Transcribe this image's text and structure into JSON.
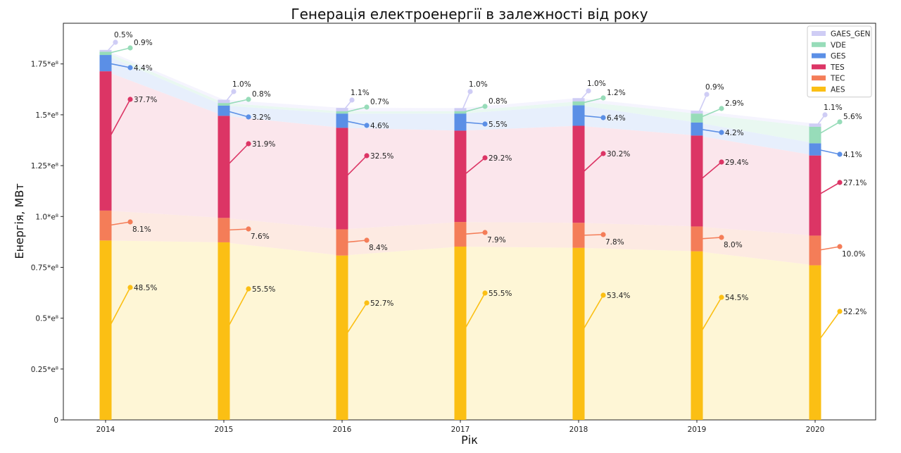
{
  "chart_data": {
    "type": "bar",
    "stacked": true,
    "title": "Генерація електроенергії в залежності від року",
    "xlabel": "Рік",
    "ylabel": "Енергія, МВт",
    "categories": [
      "2014",
      "2015",
      "2016",
      "2017",
      "2018",
      "2019",
      "2020"
    ],
    "ylim": [
      0,
      195000000
    ],
    "yticks": [
      {
        "value": 0,
        "label": "0"
      },
      {
        "value": 25000000,
        "label": "0.25*e⁸"
      },
      {
        "value": 50000000,
        "label": "0.5*e⁸"
      },
      {
        "value": 75000000,
        "label": "0.75*e⁸"
      },
      {
        "value": 100000000,
        "label": "1.0*e⁸"
      },
      {
        "value": 125000000,
        "label": "1.25*e⁸"
      },
      {
        "value": 150000000,
        "label": "1.5*e⁸"
      },
      {
        "value": 175000000,
        "label": "1.75*e⁸"
      }
    ],
    "legend_position": "top-right",
    "series": [
      {
        "name": "AES",
        "color": "#fbbf14",
        "band_color": "#fdf3c8",
        "values": [
          88200000,
          87300000,
          80800000,
          85200000,
          84600000,
          82900000,
          76000000
        ],
        "labels": [
          "48.5%",
          "55.5%",
          "52.7%",
          "55.5%",
          "53.4%",
          "54.5%",
          "52.2%"
        ]
      },
      {
        "name": "TEC",
        "color": "#f47d58",
        "band_color": "#fce3d8",
        "values": [
          14700000,
          12000000,
          12900000,
          12100000,
          12300000,
          12200000,
          14600000
        ],
        "labels": [
          "8.1%",
          "7.6%",
          "8.4%",
          "7.9%",
          "7.8%",
          "8.0%",
          "10.0%"
        ]
      },
      {
        "name": "TES",
        "color": "#dc3565",
        "band_color": "#f9dde6",
        "values": [
          68500000,
          50200000,
          49900000,
          44900000,
          47700000,
          44700000,
          39400000
        ],
        "labels": [
          "37.7%",
          "31.9%",
          "32.5%",
          "29.2%",
          "30.2%",
          "29.4%",
          "27.1%"
        ]
      },
      {
        "name": "GES",
        "color": "#5b8fe6",
        "band_color": "#dfe9fb",
        "values": [
          8000000,
          5000000,
          7000000,
          8400000,
          10100000,
          6400000,
          6000000
        ],
        "labels": [
          "4.4%",
          "3.2%",
          "4.6%",
          "5.5%",
          "6.4%",
          "4.2%",
          "4.1%"
        ]
      },
      {
        "name": "VDE",
        "color": "#97dcb9",
        "band_color": "#e2f5ec",
        "values": [
          1600000,
          1300000,
          1100000,
          1200000,
          1900000,
          4400000,
          8100000
        ],
        "labels": [
          "0.9%",
          "0.8%",
          "0.7%",
          "0.8%",
          "1.2%",
          "2.9%",
          "5.6%"
        ]
      },
      {
        "name": "GAES_GEN",
        "color": "#cfcdf5",
        "band_color": "#f1f0fd",
        "values": [
          900000,
          1600000,
          1700000,
          1500000,
          1600000,
          1400000,
          1600000
        ],
        "labels": [
          "0.5%",
          "1.0%",
          "1.1%",
          "1.0%",
          "1.0%",
          "0.9%",
          "1.1%"
        ]
      }
    ]
  }
}
